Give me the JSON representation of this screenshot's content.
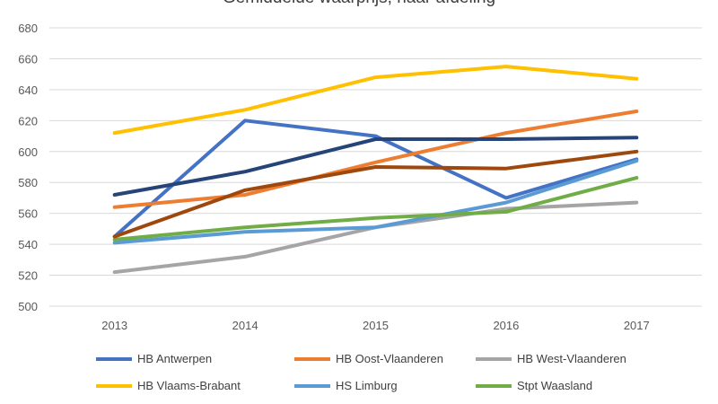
{
  "chart_data": {
    "type": "line",
    "title": "Gemiddelde waarprijs, naar afdeling",
    "x": [
      "2013",
      "2014",
      "2015",
      "2016",
      "2017"
    ],
    "ylim": [
      500,
      680
    ],
    "yticks": [
      "500",
      "520",
      "540",
      "560",
      "580",
      "600",
      "620",
      "640",
      "660",
      "680"
    ],
    "grid": true,
    "legend_position": "bottom",
    "series": [
      {
        "name": "HB Antwerpen",
        "color": "#4472C4",
        "values": [
          545,
          620,
          610,
          570,
          595
        ]
      },
      {
        "name": "HB Oost-Vlaanderen",
        "color": "#ED7D31",
        "values": [
          564,
          572,
          593,
          612,
          626
        ]
      },
      {
        "name": "HB West-Vlaanderen",
        "color": "#A5A5A5",
        "values": [
          522,
          532,
          551,
          563,
          567
        ]
      },
      {
        "name": "HB Vlaams-Brabant",
        "color": "#FFC000",
        "values": [
          612,
          627,
          648,
          655,
          647
        ]
      },
      {
        "name": "HS Limburg",
        "color": "#5B9BD5",
        "values": [
          541,
          548,
          551,
          567,
          594
        ]
      },
      {
        "name": "Stpt Waasland",
        "color": "#70AD47",
        "values": [
          543,
          551,
          557,
          561,
          583
        ]
      },
      {
        "color": "#264478",
        "values": [
          572,
          587,
          608,
          608,
          609
        ]
      },
      {
        "color": "#9E480E",
        "values": [
          545,
          575,
          590,
          589,
          600
        ]
      }
    ]
  }
}
